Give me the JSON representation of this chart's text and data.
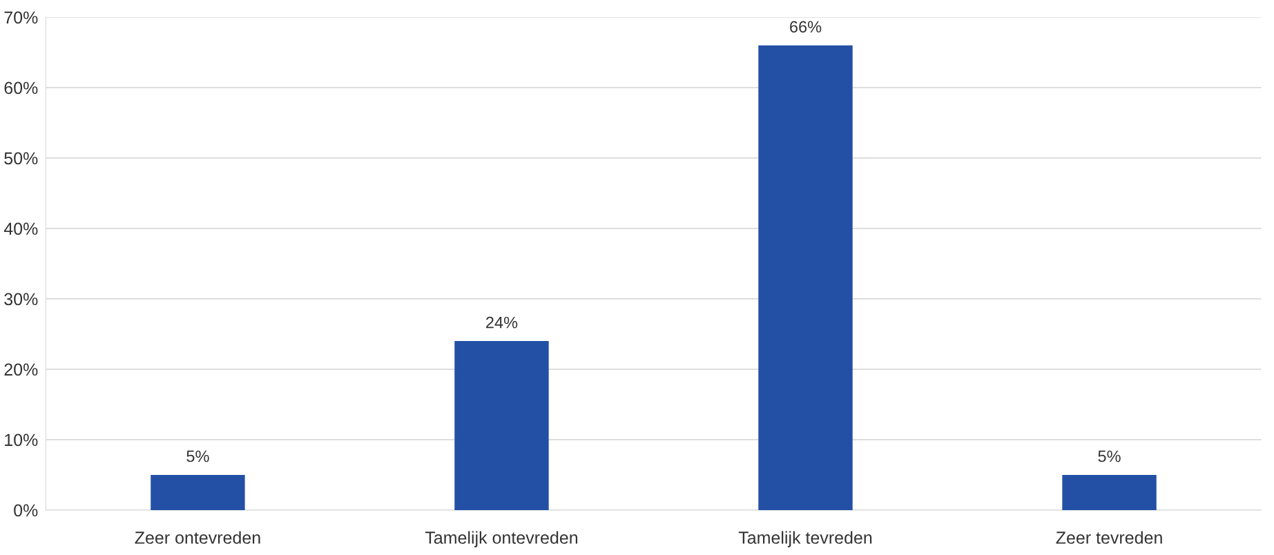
{
  "chart_data": {
    "type": "bar",
    "categories": [
      "Zeer ontevreden",
      "Tamelijk ontevreden",
      "Tamelijk tevreden",
      "Zeer tevreden"
    ],
    "values": [
      5,
      24,
      66,
      5
    ],
    "value_labels": [
      "5%",
      "24%",
      "66%",
      "5%"
    ],
    "color": "#2350a5",
    "ylim": [
      0,
      70
    ],
    "yticks": [
      {
        "value": 0,
        "label": "0%"
      },
      {
        "value": 10,
        "label": "10%"
      },
      {
        "value": 20,
        "label": "20%"
      },
      {
        "value": 30,
        "label": "30%"
      },
      {
        "value": 40,
        "label": "40%"
      },
      {
        "value": 50,
        "label": "50%"
      },
      {
        "value": 60,
        "label": "60%"
      },
      {
        "value": 70,
        "label": "70%"
      }
    ],
    "grid": "y"
  }
}
